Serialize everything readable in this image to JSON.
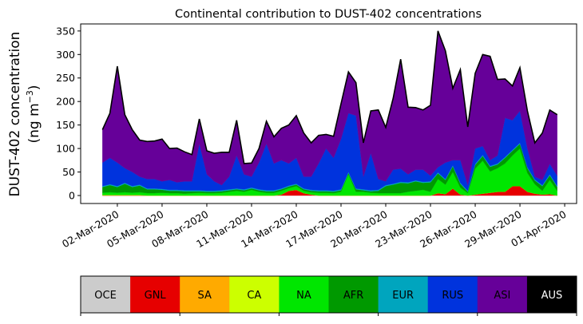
{
  "chart_data": {
    "type": "area",
    "stacked": true,
    "title": "Continental contribution to DUST-402 concentrations",
    "ylabel_line1": "DUST-402 concentration",
    "ylabel_line2_prefix": "(ng m",
    "ylabel_line2_sup": "−3",
    "ylabel_line2_suffix": ")",
    "xlabel": "",
    "ylim": [
      -17,
      365
    ],
    "xlim_days_since_start": [
      -1.46,
      31.8
    ],
    "start": "2020-03-01 00:00",
    "step_hours": 12,
    "yticks": [
      0,
      50,
      100,
      150,
      200,
      250,
      300,
      350
    ],
    "xticks": [
      {
        "day": 1,
        "label": "02-Mar-2020"
      },
      {
        "day": 4,
        "label": "05-Mar-2020"
      },
      {
        "day": 7,
        "label": "08-Mar-2020"
      },
      {
        "day": 10,
        "label": "11-Mar-2020"
      },
      {
        "day": 13,
        "label": "14-Mar-2020"
      },
      {
        "day": 16,
        "label": "17-Mar-2020"
      },
      {
        "day": 19,
        "label": "20-Mar-2020"
      },
      {
        "day": 22,
        "label": "23-Mar-2020"
      },
      {
        "day": 25,
        "label": "26-Mar-2020"
      },
      {
        "day": 28,
        "label": "29-Mar-2020"
      },
      {
        "day": 31,
        "label": "01-Apr-2020"
      }
    ],
    "series": [
      {
        "name": "OCE",
        "color": "#cccccc",
        "values": [
          0,
          0,
          0,
          0,
          0,
          0,
          0,
          0,
          0,
          0,
          0,
          0,
          0,
          0,
          0,
          0,
          0,
          0,
          0,
          0,
          0,
          0,
          0,
          0,
          0,
          0,
          0,
          0,
          0,
          0,
          0,
          0,
          0,
          0,
          0,
          0,
          0,
          0,
          0,
          0,
          0,
          0,
          0,
          0,
          0,
          0,
          0,
          0,
          0,
          0,
          0,
          0,
          0,
          0,
          0,
          0,
          0,
          0,
          0,
          0,
          0,
          0
        ]
      },
      {
        "name": "GNL",
        "color": "#e60000",
        "values": [
          0,
          0,
          0,
          0,
          0,
          0,
          0,
          0,
          0,
          0,
          0,
          0,
          0,
          0,
          0,
          0,
          0,
          0,
          0,
          0,
          0,
          0,
          0,
          0,
          2,
          10,
          12,
          5,
          2,
          0,
          0,
          0,
          0,
          0,
          0,
          0,
          0,
          0,
          0,
          0,
          0,
          0,
          0,
          0,
          0,
          5,
          3,
          15,
          2,
          0,
          2,
          4,
          6,
          8,
          8,
          20,
          20,
          8,
          4,
          2,
          3,
          0
        ]
      },
      {
        "name": "SA",
        "color": "#ffaa00",
        "values": [
          1,
          1,
          1,
          1,
          1,
          1,
          0,
          0,
          0,
          0,
          0,
          0,
          0,
          0,
          0,
          0,
          0,
          0,
          0,
          0,
          0,
          0,
          0,
          0,
          0,
          0,
          0,
          0,
          0,
          0,
          0,
          0,
          0,
          0,
          0,
          0,
          0,
          0,
          0,
          0,
          0,
          0,
          0,
          0,
          0,
          0,
          0,
          0,
          0,
          0,
          0,
          0,
          0,
          0,
          0,
          0,
          0,
          0,
          0,
          0,
          0,
          0
        ]
      },
      {
        "name": "CA",
        "color": "#ccff00",
        "values": [
          0,
          0,
          0,
          0,
          0,
          0,
          0,
          0,
          0,
          0,
          0,
          0,
          0,
          0,
          0,
          0,
          0,
          0,
          0,
          0,
          0,
          0,
          0,
          0,
          0,
          0,
          0,
          0,
          0,
          0,
          0,
          0,
          0,
          0,
          0,
          0,
          0,
          0,
          0,
          0,
          0,
          0,
          0,
          0,
          0,
          0,
          0,
          0,
          0,
          0,
          0,
          0,
          0,
          0,
          0,
          0,
          0,
          0,
          0,
          0,
          0,
          0
        ]
      },
      {
        "name": "NA",
        "color": "#00e600",
        "values": [
          5,
          6,
          5,
          6,
          5,
          6,
          5,
          5,
          6,
          5,
          5,
          4,
          5,
          6,
          5,
          5,
          6,
          8,
          10,
          8,
          12,
          8,
          6,
          6,
          8,
          6,
          8,
          5,
          5,
          6,
          6,
          5,
          8,
          45,
          8,
          8,
          6,
          5,
          5,
          5,
          5,
          8,
          10,
          12,
          8,
          30,
          20,
          35,
          15,
          5,
          55,
          70,
          45,
          50,
          60,
          65,
          80,
          40,
          20,
          8,
          30,
          10
        ]
      },
      {
        "name": "AFR",
        "color": "#009900",
        "values": [
          12,
          15,
          12,
          18,
          12,
          14,
          8,
          8,
          6,
          5,
          5,
          5,
          4,
          3,
          3,
          3,
          3,
          3,
          3,
          3,
          3,
          3,
          3,
          3,
          3,
          3,
          3,
          3,
          3,
          3,
          3,
          3,
          3,
          3,
          5,
          3,
          3,
          5,
          15,
          18,
          22,
          18,
          20,
          15,
          20,
          12,
          10,
          12,
          8,
          3,
          8,
          10,
          10,
          8,
          12,
          10,
          10,
          10,
          8,
          10,
          10,
          8
        ]
      },
      {
        "name": "EUR",
        "color": "#00a5be",
        "values": [
          2,
          2,
          2,
          2,
          2,
          2,
          2,
          2,
          2,
          2,
          2,
          2,
          2,
          2,
          2,
          2,
          2,
          2,
          2,
          2,
          2,
          2,
          2,
          2,
          2,
          2,
          2,
          2,
          2,
          2,
          2,
          2,
          2,
          2,
          2,
          2,
          2,
          2,
          2,
          2,
          2,
          2,
          2,
          2,
          2,
          2,
          2,
          2,
          2,
          2,
          2,
          2,
          2,
          2,
          2,
          2,
          2,
          2,
          2,
          2,
          2,
          2
        ]
      },
      {
        "name": "RUS",
        "color": "#0033dd",
        "values": [
          50,
          56,
          50,
          31,
          30,
          17,
          20,
          20,
          16,
          21,
          16,
          19,
          19,
          99,
          35,
          20,
          11,
          27,
          70,
          32,
          23,
          57,
          99,
          57,
          60,
          47,
          55,
          25,
          28,
          57,
          89,
          70,
          107,
          125,
          155,
          27,
          79,
          23,
          8,
          30,
          28,
          17,
          23,
          26,
          12,
          11,
          35,
          11,
          48,
          12,
          33,
          19,
          12,
          17,
          83,
          63,
          68,
          40,
          6,
          11,
          22,
          22
        ]
      },
      {
        "name": "ASI",
        "color": "#660099",
        "values": [
          70,
          95,
          205,
          114,
          90,
          78,
          80,
          81,
          90,
          67,
          73,
          63,
          57,
          53,
          50,
          60,
          70,
          52,
          75,
          23,
          29,
          30,
          48,
          57,
          68,
          82,
          90,
          93,
          72,
          60,
          30,
          46,
          75,
          88,
          70,
          72,
          90,
          147,
          115,
          152,
          233,
          143,
          132,
          127,
          150,
          290,
          238,
          153,
          193,
          124,
          160,
          195,
          221,
          162,
          83,
          73,
          92,
          80,
          72,
          100,
          115,
          130
        ]
      },
      {
        "name": "AUS",
        "color": "#000000",
        "values": [
          0,
          0,
          0,
          0,
          0,
          0,
          0,
          0,
          0,
          0,
          0,
          0,
          0,
          0,
          0,
          0,
          0,
          0,
          0,
          0,
          0,
          0,
          0,
          0,
          0,
          0,
          0,
          0,
          0,
          0,
          0,
          0,
          0,
          0,
          0,
          0,
          0,
          0,
          0,
          0,
          0,
          0,
          0,
          0,
          0,
          0,
          0,
          0,
          0,
          0,
          0,
          0,
          0,
          0,
          0,
          0,
          0,
          0,
          0,
          0,
          0,
          0
        ]
      }
    ],
    "legend_placement": "bottom colorbar",
    "total_line_color": "#000000"
  }
}
